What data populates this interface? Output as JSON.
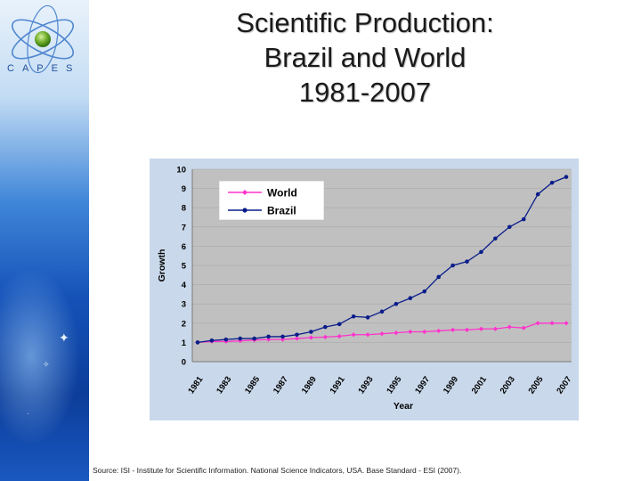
{
  "slide": {
    "title_lines": [
      "Scientific Production:",
      "Brazil and World",
      "1981-2007"
    ],
    "source": "Source: ISI - Institute for Scientific Information. National Science Indicators, USA. Base Standard - ESI (2007)."
  },
  "logo": {
    "text": "CAPES"
  },
  "colors": {
    "world": "#ff33cc",
    "brazil": "#0a1d8a",
    "plot_bg": "#c0c0c0",
    "chart_bg": "#c9d8ea"
  },
  "chart_data": {
    "type": "line",
    "title": "",
    "xlabel": "Year",
    "ylabel": "Growth",
    "ylim": [
      0,
      10
    ],
    "yticks": [
      "0",
      "1",
      "2",
      "3",
      "4",
      "5",
      "6",
      "7",
      "8",
      "9",
      "10"
    ],
    "x": [
      1981,
      1982,
      1983,
      1984,
      1985,
      1986,
      1987,
      1988,
      1989,
      1990,
      1991,
      1992,
      1993,
      1994,
      1995,
      1996,
      1997,
      1998,
      1999,
      2000,
      2001,
      2002,
      2003,
      2004,
      2005,
      2006,
      2007
    ],
    "xtick_labels": [
      "1981",
      "1983",
      "1985",
      "1987",
      "1989",
      "1991",
      "1993",
      "1995",
      "1997",
      "1999",
      "2001",
      "2003",
      "2005",
      "2007"
    ],
    "legend_position": "top-left",
    "series": [
      {
        "name": "World",
        "color": "#ff33cc",
        "marker": "diamond",
        "values": [
          1.0,
          1.05,
          1.05,
          1.08,
          1.12,
          1.15,
          1.15,
          1.2,
          1.25,
          1.28,
          1.32,
          1.4,
          1.4,
          1.45,
          1.5,
          1.55,
          1.55,
          1.6,
          1.65,
          1.65,
          1.7,
          1.7,
          1.8,
          1.75,
          2.0,
          2.0,
          2.0
        ]
      },
      {
        "name": "Brazil",
        "color": "#0a1d8a",
        "marker": "circle",
        "values": [
          1.0,
          1.1,
          1.15,
          1.2,
          1.2,
          1.3,
          1.3,
          1.4,
          1.55,
          1.8,
          1.95,
          2.35,
          2.3,
          2.6,
          3.0,
          3.3,
          3.65,
          4.4,
          5.0,
          5.2,
          5.7,
          6.4,
          7.0,
          7.4,
          8.7,
          9.3,
          9.6
        ]
      }
    ]
  }
}
